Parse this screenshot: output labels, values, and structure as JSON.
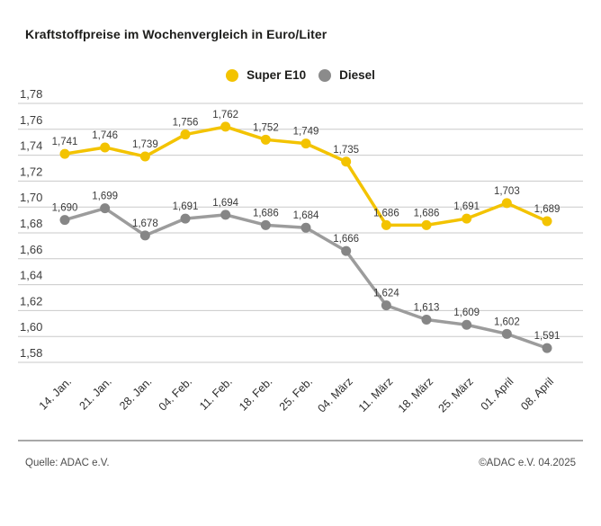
{
  "title": "Kraftstoffpreise im Wochenvergleich in Euro/Liter",
  "legend": {
    "items": [
      {
        "label": "Super E10",
        "color": "#f3c300"
      },
      {
        "label": "Diesel",
        "color": "#8b8b8b"
      }
    ]
  },
  "footer": {
    "source": "Quelle: ADAC e.V.",
    "copyright": "©ADAC e.V. 04.2025"
  },
  "colors": {
    "super_e10": "#f3c300",
    "diesel_dot": "#868686",
    "diesel_line": "#9c9c9c",
    "gridline": "#c9c9c9",
    "tick_label": "#3c3c3c",
    "value_label": "#3a3a3a"
  },
  "chart_data": {
    "type": "line",
    "title": "Kraftstoffpreise im Wochenvergleich in Euro/Liter",
    "xlabel": "",
    "ylabel": "Euro/Liter",
    "x": [
      "14. Jan.",
      "21. Jan.",
      "28. Jan.",
      "04. Feb.",
      "11. Feb.",
      "18. Feb.",
      "25. Feb.",
      "04. März",
      "11. März",
      "18. März",
      "25. März",
      "01. April",
      "08. April"
    ],
    "series": [
      {
        "name": "Super E10",
        "color": "#f3c300",
        "line_color": "#f3c300",
        "values": [
          1.741,
          1.746,
          1.739,
          1.756,
          1.762,
          1.752,
          1.749,
          1.735,
          1.686,
          1.686,
          1.691,
          1.703,
          1.689
        ]
      },
      {
        "name": "Diesel",
        "color": "#868686",
        "line_color": "#9c9c9c",
        "values": [
          1.69,
          1.699,
          1.678,
          1.691,
          1.694,
          1.686,
          1.684,
          1.666,
          1.624,
          1.613,
          1.609,
          1.602,
          1.591
        ]
      }
    ],
    "ylim": [
      1.58,
      1.78
    ],
    "ytick_step": 0.02,
    "grid": true,
    "legend_position": "top-center",
    "decimal_separator": ",",
    "point_labels": true
  }
}
